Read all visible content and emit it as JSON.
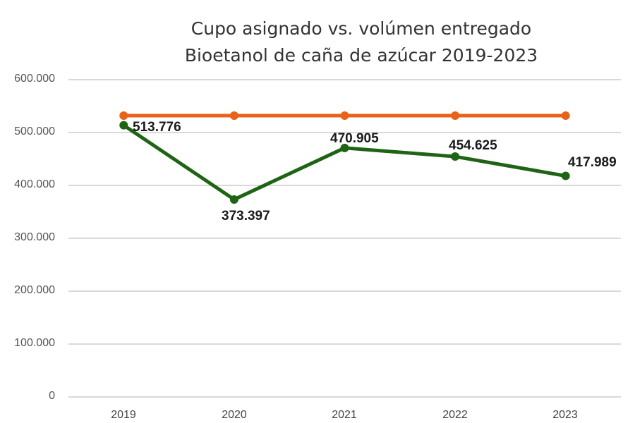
{
  "chart_data": {
    "type": "line",
    "title": "Cupo asignado vs. volúmen entregado",
    "subtitle": "Bioetanol de caña de azúcar 2019-2023",
    "xlabel": "",
    "ylabel": "",
    "categories": [
      "2019",
      "2020",
      "2021",
      "2022",
      "2023"
    ],
    "series": [
      {
        "name": "Cupo asignado",
        "color": "#E8621A",
        "values": [
          532000,
          532000,
          532000,
          532000,
          532000
        ],
        "labels_shown": false
      },
      {
        "name": "Volúmen entregado",
        "color": "#1E6414",
        "values": [
          513776,
          373397,
          470905,
          454625,
          417989
        ],
        "labels": [
          "513.776",
          "373.397",
          "470.905",
          "454.625",
          "417.989"
        ]
      }
    ],
    "ylim": [
      0,
      600000
    ],
    "yticks": [
      "600.000",
      "500.000",
      "400.000",
      "300.000",
      "200.000",
      "100.000",
      "0"
    ],
    "grid": true,
    "legend": "none"
  }
}
